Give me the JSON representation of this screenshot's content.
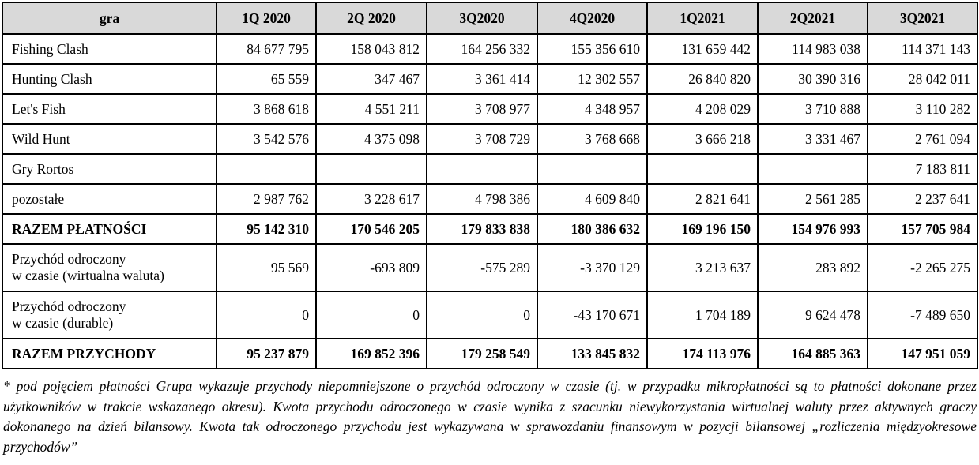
{
  "table": {
    "header": [
      "gra",
      "1Q 2020",
      "2Q 2020",
      "3Q2020",
      "4Q2020",
      "1Q2021",
      "2Q2021",
      "3Q2021"
    ],
    "rows": [
      {
        "name": [
          "Fishing Clash"
        ],
        "values": [
          "84 677 795",
          "158 043 812",
          "164 256 332",
          "155 356 610",
          "131 659 442",
          "114 983 038",
          "114 371 143"
        ],
        "bold": false
      },
      {
        "name": [
          "Hunting Clash"
        ],
        "values": [
          "65 559",
          "347 467",
          "3 361 414",
          "12 302 557",
          "26 840 820",
          "30 390 316",
          "28 042 011"
        ],
        "bold": false
      },
      {
        "name": [
          "Let's Fish"
        ],
        "values": [
          "3 868 618",
          "4 551 211",
          "3 708 977",
          "4 348 957",
          "4 208 029",
          "3 710 888",
          "3 110 282"
        ],
        "bold": false
      },
      {
        "name": [
          "Wild Hunt"
        ],
        "values": [
          "3 542 576",
          "4 375 098",
          "3 708 729",
          "3 768 668",
          "3 666 218",
          "3 331 467",
          "2 761 094"
        ],
        "bold": false
      },
      {
        "name": [
          "Gry Rortos"
        ],
        "values": [
          "",
          "",
          "",
          "",
          "",
          "",
          "7 183 811"
        ],
        "bold": false
      },
      {
        "name": [
          "pozostałe"
        ],
        "values": [
          "2 987 762",
          "3 228 617",
          "4 798 386",
          "4 609 840",
          "2 821 641",
          "2 561 285",
          "2 237 641"
        ],
        "bold": false
      },
      {
        "name": [
          "RAZEM PŁATNOŚCI"
        ],
        "values": [
          "95 142 310",
          "170 546 205",
          "179 833 838",
          "180 386 632",
          "169 196 150",
          "154 976 993",
          "157 705 984"
        ],
        "bold": true
      },
      {
        "name": [
          "Przychód odroczony",
          "w czasie (wirtualna waluta)"
        ],
        "values": [
          "95 569",
          "-693 809",
          "-575 289",
          "-3 370 129",
          "3 213 637",
          "283 892",
          "-2 265 275"
        ],
        "bold": false
      },
      {
        "name": [
          "Przychód odroczony",
          "w czasie (durable)"
        ],
        "values": [
          "0",
          "0",
          "0",
          "-43 170 671",
          "1 704 189",
          "9 624 478",
          "-7 489 650"
        ],
        "bold": false
      },
      {
        "name": [
          "RAZEM PRZYCHODY"
        ],
        "values": [
          "95 237 879",
          "169 852 396",
          "179 258 549",
          "133 845 832",
          "174 113 976",
          "164 885 363",
          "147 951 059"
        ],
        "bold": true
      }
    ]
  },
  "footnote": "* pod pojęciem płatności Grupa wykazuje przychody niepomniejszone o przychód odroczony w czasie (tj. w przypadku mikropłatności są to płatności dokonane przez użytkowników w trakcie wskazanego okresu). Kwota przychodu odroczonego w czasie wynika z szacunku niewykorzystania wirtualnej waluty przez aktywnych graczy dokonanego na dzień bilansowy. Kwota tak odroczonego przychodu jest wykazywana w sprawozdaniu finansowym w pozycji bilansowej „rozliczenia międzyokresowe przychodów”"
}
